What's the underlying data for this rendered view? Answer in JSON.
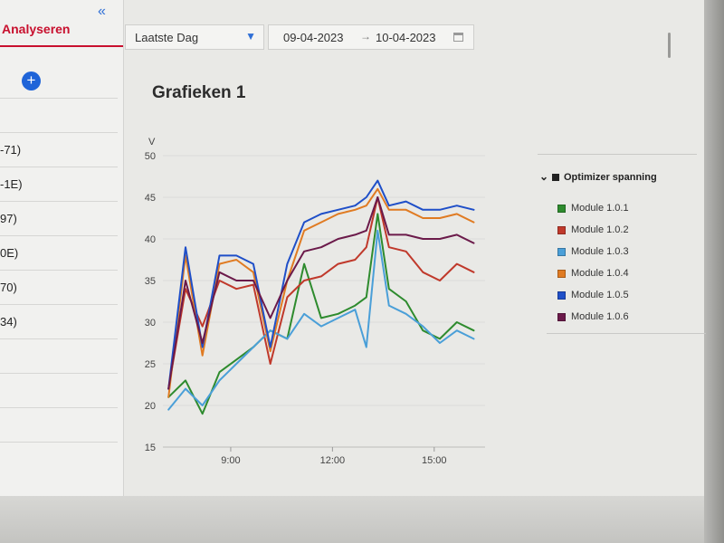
{
  "sidebar": {
    "title": "Analyseren",
    "collapse_icon": "double-chevron-left-icon",
    "add_icon": "plus-icon",
    "items": [
      {
        "label": ""
      },
      {
        "label": "-71)"
      },
      {
        "label": "-1E)"
      },
      {
        "label": "97)"
      },
      {
        "label": "0E)"
      },
      {
        "label": "70)"
      },
      {
        "label": "34)"
      },
      {
        "label": ""
      },
      {
        "label": ""
      },
      {
        "label": ""
      },
      {
        "label": ""
      }
    ]
  },
  "toolbar": {
    "period": "Laatste Dag",
    "date_from": "09-04-2023",
    "date_to": "10-04-2023",
    "range_arrow": "→"
  },
  "panel": {
    "title": "Grafieken 1"
  },
  "legend": {
    "group": "Optimizer spanning",
    "items": [
      {
        "label": "Module 1.0.1",
        "color": "#2e8b2e"
      },
      {
        "label": "Module 1.0.2",
        "color": "#c0392b"
      },
      {
        "label": "Module 1.0.3",
        "color": "#4a9fd8"
      },
      {
        "label": "Module 1.0.4",
        "color": "#e07b22"
      },
      {
        "label": "Module 1.0.5",
        "color": "#1f4fc8"
      },
      {
        "label": "Module 1.0.6",
        "color": "#6b1a4a"
      }
    ]
  },
  "chart_data": {
    "type": "line",
    "title": "",
    "ylabel": "V",
    "xlabel": "",
    "ylim": [
      15,
      50
    ],
    "yticks": [
      "50",
      "45",
      "40",
      "35",
      "30",
      "25",
      "20",
      "15"
    ],
    "xticks": [
      "9:00",
      "12:00",
      "15:00"
    ],
    "grid": true,
    "x": [
      "7:10",
      "7:40",
      "8:10",
      "8:40",
      "9:10",
      "9:40",
      "10:10",
      "10:40",
      "11:10",
      "11:40",
      "12:10",
      "12:40",
      "13:00",
      "13:20",
      "13:40",
      "14:10",
      "14:40",
      "15:10",
      "15:40",
      "16:10"
    ],
    "series": [
      {
        "name": "Module 1.0.1",
        "values": [
          21,
          23,
          19,
          24,
          25.5,
          27,
          29,
          28,
          37,
          30.5,
          31,
          32,
          33,
          43,
          34,
          32.5,
          29,
          28,
          30,
          29
        ]
      },
      {
        "name": "Module 1.0.2",
        "values": [
          22,
          34,
          29.5,
          35,
          34,
          34.5,
          25,
          33,
          35,
          35.5,
          37,
          37.5,
          39,
          45,
          39,
          38.5,
          36,
          35,
          37,
          36
        ]
      },
      {
        "name": "Module 1.0.3",
        "values": [
          19.5,
          22,
          20,
          23,
          25,
          27,
          29,
          28,
          31,
          29.5,
          30.5,
          31.5,
          27,
          41,
          32,
          31,
          29.5,
          27.5,
          29,
          28
        ]
      },
      {
        "name": "Module 1.0.4",
        "values": [
          21,
          38,
          26,
          37,
          37.5,
          36,
          26.5,
          35,
          41,
          42,
          43,
          43.5,
          44,
          46,
          43.5,
          43.5,
          42.5,
          42.5,
          43,
          42
        ]
      },
      {
        "name": "Module 1.0.5",
        "values": [
          22,
          39,
          27,
          38,
          38,
          37,
          27,
          37,
          42,
          43,
          43.5,
          44,
          45,
          47,
          44,
          44.5,
          43.5,
          43.5,
          44,
          43.5
        ]
      },
      {
        "name": "Module 1.0.6",
        "values": [
          22,
          35,
          27.5,
          36,
          35,
          35,
          30.5,
          35,
          38.5,
          39,
          40,
          40.5,
          41,
          45,
          40.5,
          40.5,
          40,
          40,
          40.5,
          39.5
        ]
      }
    ]
  }
}
